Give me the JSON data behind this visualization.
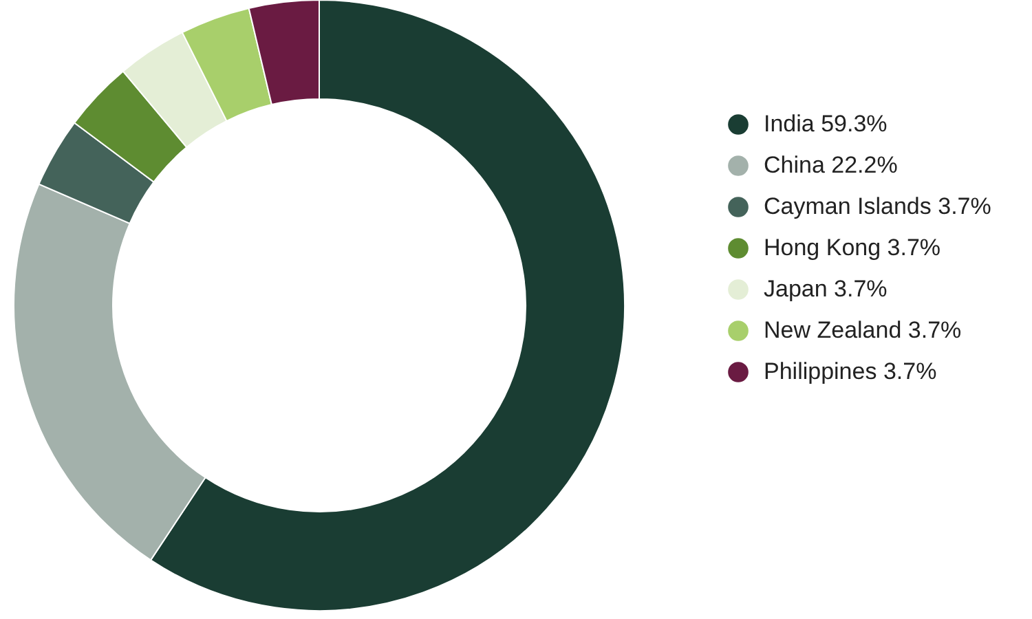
{
  "chart_data": {
    "type": "donut",
    "categories": [
      "India 59.3%",
      "China 22.2%",
      "Cayman Islands 3.7%",
      "Hong Kong 3.7%",
      "Japan 3.7%",
      "New Zealand 3.7%",
      "Philippines 3.7%"
    ],
    "values": [
      59.3,
      22.2,
      3.7,
      3.7,
      3.7,
      3.7,
      3.7
    ],
    "colors": [
      "#1a3d33",
      "#a3b1ab",
      "#44635a",
      "#5e8c31",
      "#e4eed6",
      "#a8cf6b",
      "#6a1b42"
    ],
    "legend": "right"
  }
}
